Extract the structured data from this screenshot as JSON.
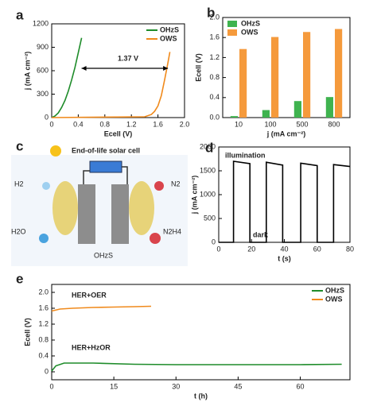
{
  "chart_data": [
    {
      "type": "line",
      "panel_label": "a",
      "x_label": "Ecell (V)",
      "y_label": "j (mA cm⁻²)",
      "xlim": [
        0,
        2
      ],
      "xticks": [
        0,
        0.4,
        0.8,
        1.2,
        1.6,
        {
          "value": 2,
          "label": "2.0"
        }
      ],
      "ylim": [
        0,
        1200
      ],
      "yticks": [
        0,
        300,
        600,
        900,
        1200
      ],
      "legend": "top-right",
      "annotations": [
        "1.37 V"
      ],
      "series": [
        {
          "name": "OHzS",
          "color": "#1e8c2a",
          "x": [
            0,
            0.05,
            0.1,
            0.15,
            0.2,
            0.25,
            0.3,
            0.35,
            0.4,
            0.45
          ],
          "values": [
            0,
            20,
            60,
            130,
            220,
            340,
            480,
            640,
            830,
            1020
          ]
        },
        {
          "name": "OWS",
          "color": "#f08a1c",
          "x": [
            0,
            1.4,
            1.5,
            1.55,
            1.6,
            1.65,
            1.7,
            1.75,
            1.78
          ],
          "values": [
            0,
            10,
            40,
            80,
            150,
            280,
            480,
            700,
            840
          ]
        }
      ]
    },
    {
      "type": "bar",
      "panel_label": "b",
      "x_label": "j (mA cm⁻²)",
      "y_label": "Ecell (V)",
      "categories": [
        "10",
        "100",
        "500",
        "800"
      ],
      "ylim": [
        0,
        2
      ],
      "yticks": [
        {
          "value": 0,
          "label": "0.0"
        },
        0.4,
        0.8,
        1.2,
        1.6,
        {
          "value": 2,
          "label": "2.0"
        }
      ],
      "legend": "top-left",
      "annotations": [],
      "series": [
        {
          "name": "OHzS",
          "color": "#3fb34f",
          "values": [
            0.03,
            0.15,
            0.33,
            0.41
          ]
        },
        {
          "name": "OWS",
          "color": "#f59a3c",
          "values": [
            1.37,
            1.61,
            1.71,
            1.77
          ]
        }
      ]
    },
    {
      "type": "line",
      "panel_label": "d",
      "x_label": "t (s)",
      "y_label": "j (mA cm⁻²)",
      "xlim": [
        0,
        80
      ],
      "xticks": [
        0,
        20,
        40,
        60,
        80
      ],
      "ylim": [
        0,
        2000
      ],
      "yticks": [
        0,
        500,
        1000,
        1500,
        2000
      ],
      "annotations": [
        "illumination",
        "dark"
      ],
      "series": [
        {
          "color": "#000000",
          "x": [
            0,
            9,
            9,
            19,
            19,
            29,
            29,
            39,
            39,
            50,
            50,
            60,
            60,
            70,
            70,
            80
          ],
          "values": [
            0,
            0,
            1700,
            1650,
            0,
            0,
            1680,
            1620,
            0,
            0,
            1660,
            1610,
            0,
            0,
            1630,
            1590
          ]
        }
      ]
    },
    {
      "type": "line",
      "panel_label": "e",
      "x_label": "t (h)",
      "y_label": "Ecell (V)",
      "xlim": [
        0,
        72
      ],
      "xticks": [
        0,
        15,
        30,
        45,
        60
      ],
      "ylim": [
        -0.2,
        2.2
      ],
      "yticks": [
        0,
        0.4,
        0.8,
        1.2,
        1.6,
        {
          "value": 2,
          "label": "2.0"
        }
      ],
      "legend": "top-right",
      "annotations": [
        "HER+OER",
        "HER+HzOR"
      ],
      "series": [
        {
          "name": "OHzS",
          "color": "#1e8c2a",
          "x": [
            0,
            1,
            3,
            10,
            20,
            30,
            45,
            60,
            70
          ],
          "values": [
            0.02,
            0.15,
            0.22,
            0.22,
            0.19,
            0.18,
            0.18,
            0.18,
            0.19
          ]
        },
        {
          "name": "OWS",
          "color": "#f08a1c",
          "x": [
            0,
            2,
            5,
            10,
            15,
            20,
            24
          ],
          "values": [
            1.53,
            1.58,
            1.6,
            1.62,
            1.63,
            1.64,
            1.65
          ]
        }
      ]
    }
  ],
  "diagram": {
    "panel_label": "c",
    "title": "End-of-life solar cell",
    "left_top": "H2",
    "right_top": "N2",
    "left_bottom": "H2O",
    "right_bottom": "N2H4",
    "center": "OHzS"
  }
}
